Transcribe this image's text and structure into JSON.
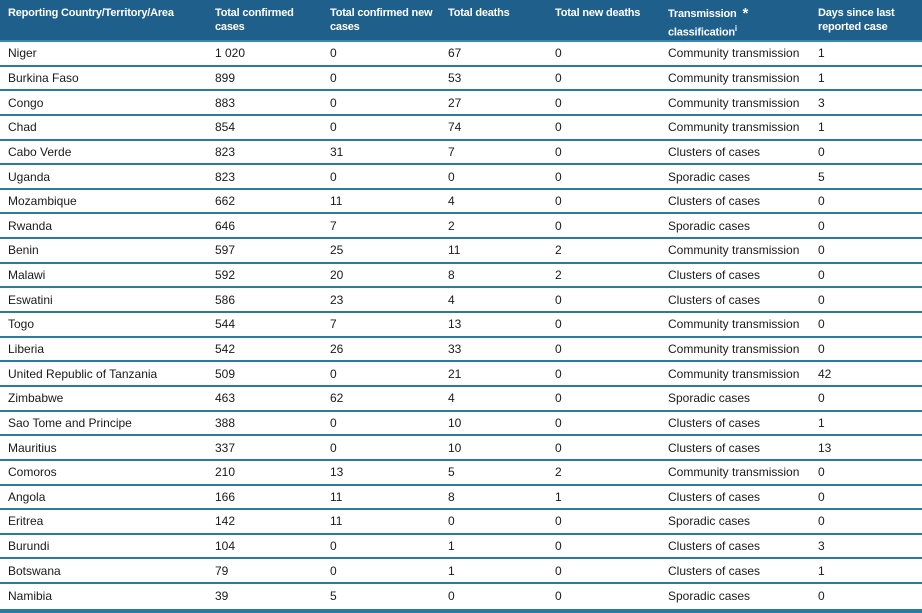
{
  "colors": {
    "header_bg": "#1f5f8b",
    "header_text": "#ffffff",
    "divider_line": "#2c7b9e",
    "header_underline": "#3d88a9",
    "body_text": "#1a1a1a",
    "row_bg": "#ffffff"
  },
  "header": {
    "columns": [
      {
        "label": "Reporting Country/Territory/Area"
      },
      {
        "label": "Total confirmed cases"
      },
      {
        "label": "Total confirmed new cases"
      },
      {
        "label": "Total deaths"
      },
      {
        "label": "Total new deaths"
      },
      {
        "label": "Transmission",
        "marker": "*",
        "label2": "classification",
        "footnote": "i"
      },
      {
        "label": "Days since last reported case"
      }
    ]
  },
  "table": {
    "rows": [
      [
        "Niger",
        "1 020",
        "0",
        "67",
        "0",
        "Community transmission",
        "1"
      ],
      [
        "Burkina Faso",
        "899",
        "0",
        "53",
        "0",
        "Community transmission",
        "1"
      ],
      [
        "Congo",
        "883",
        "0",
        "27",
        "0",
        "Community transmission",
        "3"
      ],
      [
        "Chad",
        "854",
        "0",
        "74",
        "0",
        "Community transmission",
        "1"
      ],
      [
        "Cabo Verde",
        "823",
        "31",
        "7",
        "0",
        "Clusters of cases",
        "0"
      ],
      [
        "Uganda",
        "823",
        "0",
        "0",
        "0",
        "Sporadic cases",
        "5"
      ],
      [
        "Mozambique",
        "662",
        "11",
        "4",
        "0",
        "Clusters of cases",
        "0"
      ],
      [
        "Rwanda",
        "646",
        "7",
        "2",
        "0",
        "Sporadic cases",
        "0"
      ],
      [
        "Benin",
        "597",
        "25",
        "11",
        "2",
        "Community transmission",
        "0"
      ],
      [
        "Malawi",
        "592",
        "20",
        "8",
        "2",
        "Clusters of cases",
        "0"
      ],
      [
        "Eswatini",
        "586",
        "23",
        "4",
        "0",
        "Clusters of cases",
        "0"
      ],
      [
        "Togo",
        "544",
        "7",
        "13",
        "0",
        "Community transmission",
        "0"
      ],
      [
        "Liberia",
        "542",
        "26",
        "33",
        "0",
        "Community transmission",
        "0"
      ],
      [
        "United Republic of Tanzania",
        "509",
        "0",
        "21",
        "0",
        "Community transmission",
        "42"
      ],
      [
        "Zimbabwe",
        "463",
        "62",
        "4",
        "0",
        "Sporadic cases",
        "0"
      ],
      [
        "Sao Tome and Principe",
        "388",
        "0",
        "10",
        "0",
        "Clusters of cases",
        "1"
      ],
      [
        "Mauritius",
        "337",
        "0",
        "10",
        "0",
        "Clusters of cases",
        "13"
      ],
      [
        "Comoros",
        "210",
        "13",
        "5",
        "2",
        "Community transmission",
        "0"
      ],
      [
        "Angola",
        "166",
        "11",
        "8",
        "1",
        "Clusters of cases",
        "0"
      ],
      [
        "Eritrea",
        "142",
        "11",
        "0",
        "0",
        "Sporadic cases",
        "0"
      ],
      [
        "Burundi",
        "104",
        "0",
        "1",
        "0",
        "Clusters of cases",
        "3"
      ],
      [
        "Botswana",
        "79",
        "0",
        "1",
        "0",
        "Clusters of cases",
        "1"
      ],
      [
        "Namibia",
        "39",
        "5",
        "0",
        "0",
        "Sporadic cases",
        "0"
      ]
    ]
  }
}
